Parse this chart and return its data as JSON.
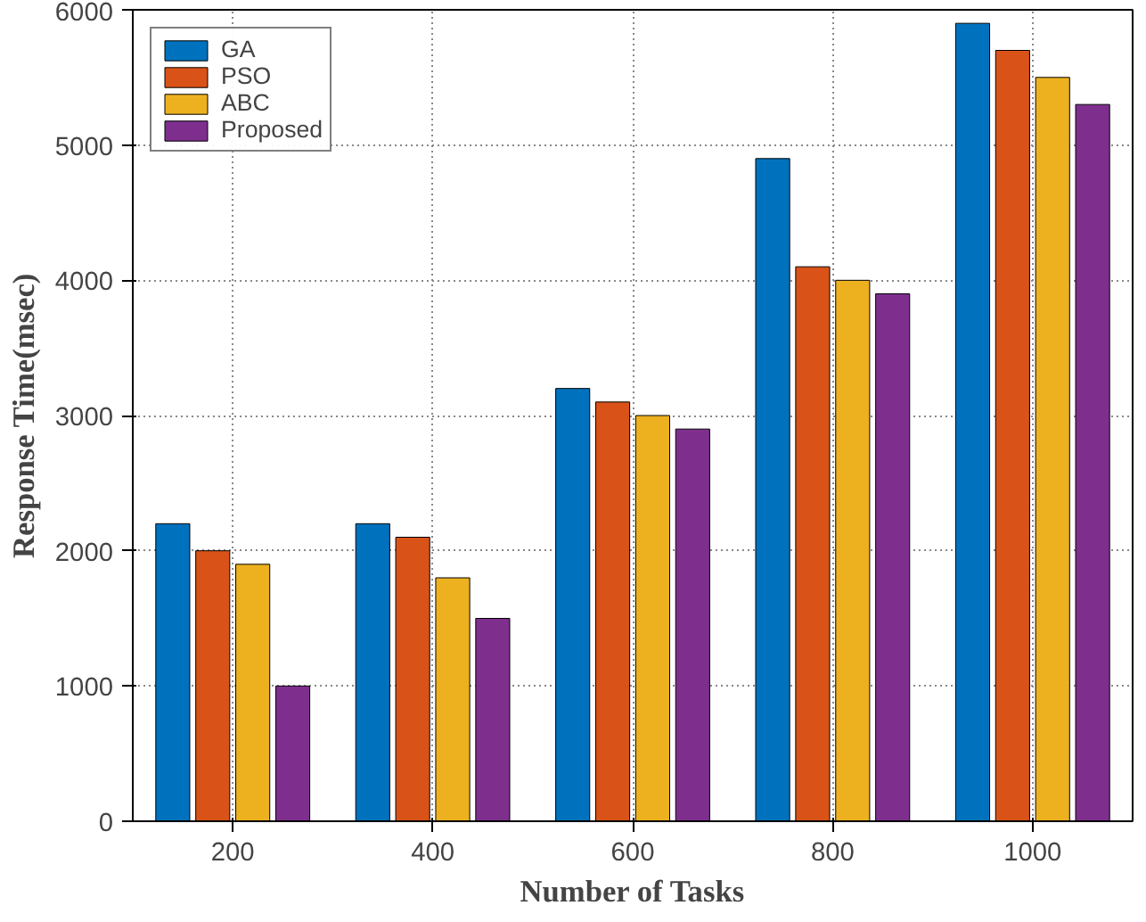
{
  "chart_data": {
    "type": "bar",
    "xlabel": "Number of Tasks",
    "ylabel": "Response Time(msec)",
    "categories": [
      "200",
      "400",
      "600",
      "800",
      "1000"
    ],
    "series": [
      {
        "name": "GA",
        "color": "#0072bd",
        "values": [
          2200,
          2200,
          3200,
          4900,
          5900
        ]
      },
      {
        "name": "PSO",
        "color": "#d95319",
        "values": [
          2000,
          2100,
          3100,
          4100,
          5700
        ]
      },
      {
        "name": "ABC",
        "color": "#edb120",
        "values": [
          1900,
          1800,
          3000,
          4000,
          5500
        ]
      },
      {
        "name": "Proposed",
        "color": "#7e2f8e",
        "values": [
          1000,
          1500,
          2900,
          3900,
          5300
        ]
      }
    ],
    "ylim": [
      0,
      6000
    ],
    "yticks": [
      0,
      1000,
      2000,
      3000,
      4000,
      5000,
      6000
    ],
    "grid": true,
    "legend": "top left"
  }
}
